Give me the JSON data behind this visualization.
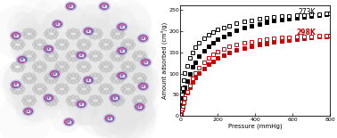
{
  "xlabel": "Pressure (mmHg)",
  "ylabel": "Amount adsorbed (cm³/g)",
  "xlim": [
    0,
    800
  ],
  "ylim": [
    0,
    260
  ],
  "xticks": [
    0,
    200,
    400,
    600,
    800
  ],
  "yticks": [
    0,
    50,
    100,
    150,
    200,
    250
  ],
  "label_273K": "273K",
  "label_298K": "298K",
  "color_273K": "#000000",
  "color_298K": "#cc0000",
  "adsorption_273K_x": [
    1,
    3,
    5,
    8,
    12,
    18,
    25,
    35,
    50,
    65,
    80,
    100,
    125,
    150,
    175,
    200,
    230,
    260,
    300,
    340,
    380,
    420,
    460,
    500,
    540,
    580,
    620,
    660,
    700,
    740,
    780,
    800
  ],
  "adsorption_273K_y": [
    5,
    12,
    20,
    30,
    42,
    56,
    68,
    83,
    100,
    115,
    127,
    140,
    153,
    163,
    172,
    180,
    188,
    194,
    201,
    207,
    212,
    216,
    220,
    224,
    227,
    230,
    232,
    234,
    236,
    238,
    239,
    241
  ],
  "desorption_273K_x": [
    800,
    780,
    740,
    700,
    660,
    620,
    580,
    540,
    500,
    460,
    420,
    380,
    340,
    300,
    260,
    230,
    200,
    175,
    150,
    125,
    100,
    80,
    65,
    50,
    35,
    25,
    18,
    12,
    8,
    5,
    3,
    1
  ],
  "desorption_273K_y": [
    241,
    241,
    240,
    239,
    238,
    237,
    236,
    235,
    233,
    231,
    228,
    225,
    222,
    218,
    213,
    208,
    203,
    197,
    191,
    183,
    173,
    162,
    150,
    136,
    118,
    102,
    84,
    66,
    50,
    34,
    20,
    8
  ],
  "adsorption_298K_x": [
    1,
    3,
    5,
    8,
    12,
    18,
    25,
    35,
    50,
    65,
    80,
    100,
    125,
    150,
    175,
    200,
    230,
    260,
    300,
    340,
    380,
    420,
    460,
    500,
    540,
    580,
    620,
    660,
    700,
    740,
    780,
    800
  ],
  "adsorption_298K_y": [
    2,
    5,
    9,
    15,
    22,
    32,
    42,
    54,
    68,
    80,
    90,
    101,
    112,
    121,
    129,
    136,
    143,
    149,
    155,
    160,
    164,
    168,
    171,
    174,
    177,
    179,
    181,
    183,
    185,
    187,
    188,
    190
  ],
  "desorption_298K_x": [
    800,
    780,
    740,
    700,
    660,
    620,
    580,
    540,
    500,
    460,
    420,
    380,
    340,
    300,
    260,
    230,
    200,
    175,
    150,
    125,
    100,
    80,
    65,
    50,
    35,
    25,
    18,
    12,
    8,
    5,
    3,
    1
  ],
  "desorption_298K_y": [
    190,
    190,
    189,
    188,
    187,
    186,
    185,
    184,
    182,
    180,
    178,
    175,
    172,
    168,
    163,
    158,
    152,
    145,
    136,
    126,
    114,
    101,
    88,
    72,
    56,
    43,
    31,
    22,
    15,
    9,
    5,
    2
  ],
  "bg_color": "#ffffff",
  "mof_bg_outer": "#e8e8e8",
  "mof_bg_inner": "#f0f0f0",
  "node_pink": "#d060a0",
  "node_blue": "#8090d8",
  "linker_gray": "#b0b0b0",
  "linker_dark": "#808080"
}
